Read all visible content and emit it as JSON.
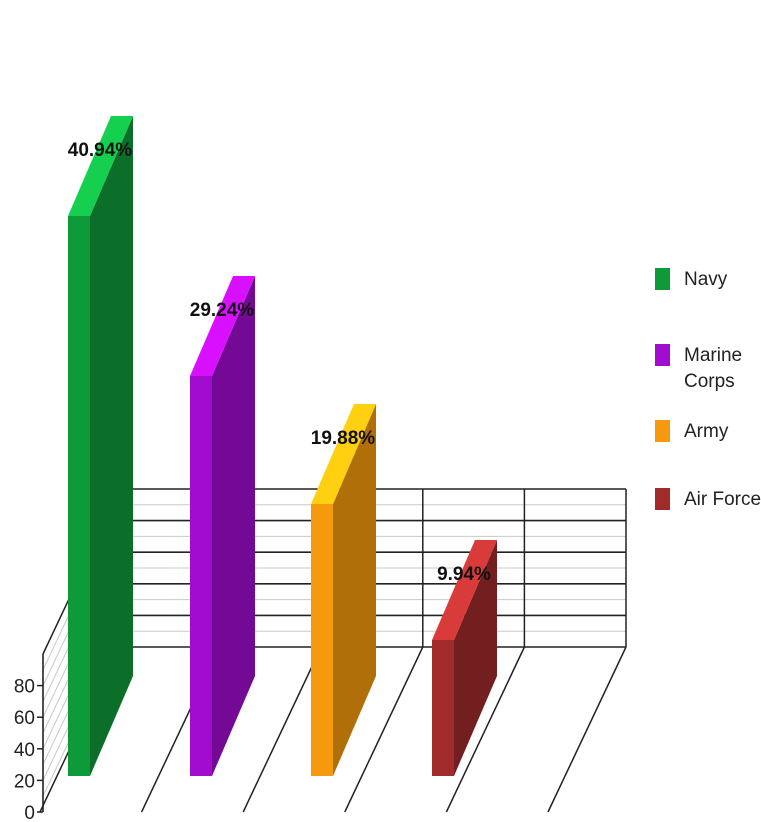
{
  "chart_data": {
    "type": "bar",
    "categories": [
      "Navy",
      "Marine Corps",
      "Army",
      "Air Force"
    ],
    "series": [
      {
        "values": [
          70,
          50,
          34,
          17
        ],
        "data_labels": [
          "40.94%",
          "29.24%",
          "19.88%",
          "9.94%"
        ]
      }
    ],
    "colors": [
      "#0f9a3a",
      "#a10ccf",
      "#f59a0c",
      "#a12b2b"
    ],
    "ylim": [
      0,
      100
    ],
    "yticks": [
      0,
      20,
      40,
      60,
      80
    ],
    "grid": true,
    "legend_position": "right",
    "legend": {
      "items": [
        {
          "label": "Navy",
          "color": "#0f9a3a"
        },
        {
          "label": "Marine Corps",
          "color": "#a10ccf"
        },
        {
          "label": "Army",
          "color": "#f59a0c"
        },
        {
          "label": "Air Force",
          "color": "#a12b2b"
        }
      ]
    }
  }
}
